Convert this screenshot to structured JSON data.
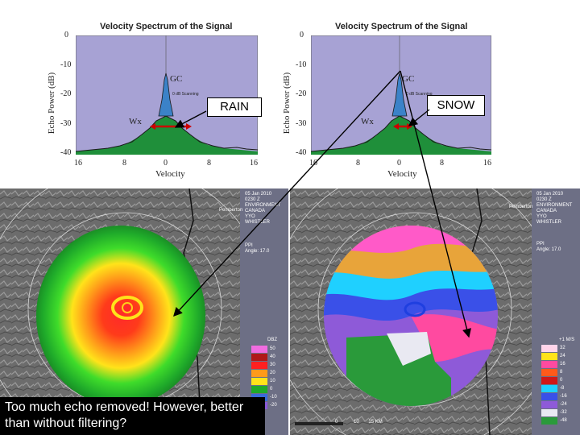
{
  "left_chart": {
    "title": "Velocity Spectrum of the Signal",
    "ylabel": "Echo Power (dB)",
    "xlabel": "Velocity",
    "yticks": [
      "0",
      "-10",
      "-20",
      "-30",
      "-40"
    ],
    "xticks": [
      "16",
      "8",
      "0",
      "8",
      "16"
    ],
    "gc": "GC",
    "wx": "Wx",
    "note": "0 dB Scanning"
  },
  "right_chart": {
    "title": "Velocity Spectrum of the Signal",
    "ylabel": "Echo Power (dB)",
    "xlabel": "Velocity",
    "yticks": [
      "0",
      "-10",
      "-20",
      "-30",
      "-40"
    ],
    "xticks": [
      "16",
      "8",
      "0",
      "8",
      "16"
    ],
    "gc": "GC",
    "wx": "Wx",
    "note": "0 dB Scanning"
  },
  "labels": {
    "rain": "RAIN",
    "snow": "SNOW"
  },
  "caption": "Too much echo removed!  However, better than without filtering?",
  "left_radar": {
    "place": "Pemberton",
    "info": [
      "05 Jan 2010",
      "0230 Z",
      "ENVIRONMENT",
      "CANADA",
      "YYO",
      "WHISTLER"
    ],
    "ppi": [
      "PPI",
      "Angle: 17.0"
    ],
    "legend_title": "DBZ",
    "legend": [
      "50",
      "40",
      "30",
      "20",
      "10",
      "0",
      "-10",
      "-20"
    ]
  },
  "right_radar": {
    "place": "Pemberton",
    "info": [
      "05 Jan 2010",
      "0230 Z",
      "ENVIRONMENT",
      "CANADA",
      "YYO",
      "WHISTLER"
    ],
    "ppi": [
      "PPI",
      "Angle: 17.0"
    ],
    "legend_title": "+1 M/S",
    "legend": [
      "32",
      "24",
      "16",
      "8",
      "0",
      "-8",
      "-16",
      "-24",
      "-32",
      "-48"
    ],
    "scale": [
      "0",
      "10",
      "15 KM"
    ]
  },
  "colors": {
    "plot_bg": "#a7a2d4",
    "weather": "#1f8f3a",
    "clutter": "#3b82c8",
    "arrow": "#cc0000"
  }
}
